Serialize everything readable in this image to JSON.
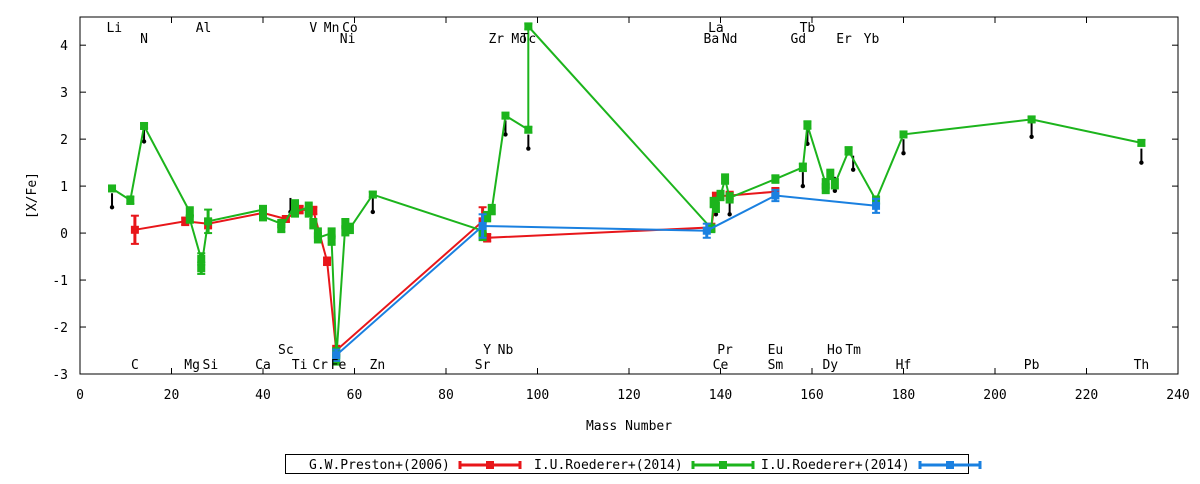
{
  "chart_data": {
    "type": "line",
    "xlabel": "Mass Number",
    "ylabel": "[X/Fe]",
    "xlim": [
      0,
      240
    ],
    "ylim": [
      -3,
      4.6
    ],
    "xticks": [
      0,
      20,
      40,
      60,
      80,
      100,
      120,
      140,
      160,
      180,
      200,
      220,
      240
    ],
    "yticks": [
      -3,
      -2,
      -1,
      0,
      1,
      2,
      3,
      4
    ],
    "grid": false,
    "legend_position": "bottom",
    "element_labels": [
      {
        "text": "Li",
        "x": 7.5,
        "row": "top1"
      },
      {
        "text": "Al",
        "x": 27,
        "row": "top1"
      },
      {
        "text": "V",
        "x": 51,
        "row": "top1"
      },
      {
        "text": "Mn",
        "x": 55,
        "row": "top1"
      },
      {
        "text": "Co",
        "x": 59,
        "row": "top1"
      },
      {
        "text": "La",
        "x": 139,
        "row": "top1"
      },
      {
        "text": "Tb",
        "x": 159,
        "row": "top1"
      },
      {
        "text": "N",
        "x": 14,
        "row": "top2"
      },
      {
        "text": "Ni",
        "x": 58.5,
        "row": "top2"
      },
      {
        "text": "Zr",
        "x": 91,
        "row": "top2"
      },
      {
        "text": "Mo",
        "x": 96,
        "row": "top2"
      },
      {
        "text": "Tc",
        "x": 98,
        "row": "top2"
      },
      {
        "text": "Ba",
        "x": 138,
        "row": "top2"
      },
      {
        "text": "Nd",
        "x": 142,
        "row": "top2"
      },
      {
        "text": "Gd",
        "x": 157,
        "row": "top2"
      },
      {
        "text": "Er",
        "x": 167,
        "row": "top2"
      },
      {
        "text": "Yb",
        "x": 173,
        "row": "top2"
      },
      {
        "text": "Sc",
        "x": 45,
        "row": "bottom1"
      },
      {
        "text": "Y",
        "x": 89,
        "row": "bottom1"
      },
      {
        "text": "Nb",
        "x": 93,
        "row": "bottom1"
      },
      {
        "text": "Pr",
        "x": 141,
        "row": "bottom1"
      },
      {
        "text": "Eu",
        "x": 152,
        "row": "bottom1"
      },
      {
        "text": "Ho",
        "x": 165,
        "row": "bottom1"
      },
      {
        "text": "Tm",
        "x": 169,
        "row": "bottom1"
      },
      {
        "text": "C",
        "x": 12,
        "row": "bottom2"
      },
      {
        "text": "Mg",
        "x": 24.5,
        "row": "bottom2"
      },
      {
        "text": "Si",
        "x": 28.5,
        "row": "bottom2"
      },
      {
        "text": "Ca",
        "x": 40,
        "row": "bottom2"
      },
      {
        "text": "Ti",
        "x": 48,
        "row": "bottom2"
      },
      {
        "text": "Cr",
        "x": 52.5,
        "row": "bottom2"
      },
      {
        "text": "Fe",
        "x": 56.5,
        "row": "bottom2"
      },
      {
        "text": "Zn",
        "x": 65,
        "row": "bottom2"
      },
      {
        "text": "Sr",
        "x": 88,
        "row": "bottom2"
      },
      {
        "text": "Ce",
        "x": 140,
        "row": "bottom2"
      },
      {
        "text": "Sm",
        "x": 152,
        "row": "bottom2"
      },
      {
        "text": "Dy",
        "x": 164,
        "row": "bottom2"
      },
      {
        "text": "Hf",
        "x": 180,
        "row": "bottom2"
      },
      {
        "text": "Pb",
        "x": 208,
        "row": "bottom2"
      },
      {
        "text": "Th",
        "x": 232,
        "row": "bottom2"
      }
    ],
    "upper_limits": [
      {
        "x": 7,
        "y": 0.55
      },
      {
        "x": 14,
        "y": 1.95
      },
      {
        "x": 46,
        "y": 0.45
      },
      {
        "x": 64,
        "y": 0.45
      },
      {
        "x": 93,
        "y": 2.1
      },
      {
        "x": 98,
        "y": 1.8
      },
      {
        "x": 139,
        "y": 0.4
      },
      {
        "x": 142,
        "y": 0.4
      },
      {
        "x": 158,
        "y": 1.0
      },
      {
        "x": 159,
        "y": 1.9
      },
      {
        "x": 165,
        "y": 0.9
      },
      {
        "x": 169,
        "y": 1.35
      },
      {
        "x": 180,
        "y": 1.7
      },
      {
        "x": 208,
        "y": 2.05
      },
      {
        "x": 232,
        "y": 1.5
      }
    ],
    "series": [
      {
        "name": "G.W.Preston+(2006)",
        "color": "#e8161a",
        "points": [
          {
            "x": 12,
            "y": 0.07,
            "err": 0.3
          },
          {
            "x": 23,
            "y": 0.25,
            "err": 0.08
          },
          {
            "x": 28,
            "y": 0.2,
            "err": 0.1
          },
          {
            "x": 40,
            "y": 0.43,
            "err": 0.08
          },
          {
            "x": 45,
            "y": 0.3,
            "err": 0.06
          },
          {
            "x": 48,
            "y": 0.5,
            "err": 0.08
          },
          {
            "x": 51,
            "y": 0.48,
            "err": 0.08
          },
          {
            "x": 54,
            "y": -0.6,
            "err": 0.08
          },
          {
            "x": 56,
            "y": -2.5,
            "err": 0.1
          },
          {
            "x": 88,
            "y": 0.25,
            "err": 0.3
          },
          {
            "x": 89,
            "y": -0.1,
            "err": 0.08
          },
          {
            "x": 138,
            "y": 0.12,
            "err": 0.08
          },
          {
            "x": 139,
            "y": 0.78,
            "err": 0.08
          },
          {
            "x": 142,
            "y": 0.8,
            "err": 0.08
          },
          {
            "x": 152,
            "y": 0.88,
            "err": 0.08
          }
        ]
      },
      {
        "name": "I.U.Roederer+(2014)",
        "color": "#1cb41c",
        "points": [
          {
            "x": 7,
            "y": 0.95,
            "err": 0.05
          },
          {
            "x": 11,
            "y": 0.7,
            "err": 0.08
          },
          {
            "x": 14,
            "y": 2.28,
            "err": 0.05
          },
          {
            "x": 24,
            "y": 0.45,
            "err": 0.1
          },
          {
            "x": 24,
            "y": 0.3,
            "err": 0.08
          },
          {
            "x": 26.5,
            "y": -0.55,
            "err": 0.12
          },
          {
            "x": 26.5,
            "y": -0.75,
            "err": 0.12
          },
          {
            "x": 28,
            "y": 0.25,
            "err": 0.25
          },
          {
            "x": 40,
            "y": 0.5,
            "err": 0.08
          },
          {
            "x": 40,
            "y": 0.35,
            "err": 0.08
          },
          {
            "x": 44,
            "y": 0.2,
            "err": 0.08
          },
          {
            "x": 44,
            "y": 0.1,
            "err": 0.08
          },
          {
            "x": 47,
            "y": 0.6,
            "err": 0.1
          },
          {
            "x": 47,
            "y": 0.45,
            "err": 0.1
          },
          {
            "x": 50,
            "y": 0.55,
            "err": 0.1
          },
          {
            "x": 50,
            "y": 0.45,
            "err": 0.1
          },
          {
            "x": 51,
            "y": 0.2,
            "err": 0.1
          },
          {
            "x": 52,
            "y": 0.0,
            "err": 0.1
          },
          {
            "x": 52,
            "y": -0.1,
            "err": 0.1
          },
          {
            "x": 55,
            "y": 0.0,
            "err": 0.1
          },
          {
            "x": 55,
            "y": -0.15,
            "err": 0.1
          },
          {
            "x": 56,
            "y": -2.55,
            "err": 0.1
          },
          {
            "x": 56,
            "y": -2.7,
            "err": 0.1
          },
          {
            "x": 58,
            "y": 0.2,
            "err": 0.1
          },
          {
            "x": 58,
            "y": 0.05,
            "err": 0.1
          },
          {
            "x": 59,
            "y": 0.1,
            "err": 0.1
          },
          {
            "x": 64,
            "y": 0.82,
            "err": 0.06
          },
          {
            "x": 88,
            "y": 0.05,
            "err": 0.1
          },
          {
            "x": 88,
            "y": -0.05,
            "err": 0.1
          },
          {
            "x": 89,
            "y": 0.35,
            "err": 0.1
          },
          {
            "x": 90,
            "y": 0.5,
            "err": 0.1
          },
          {
            "x": 93,
            "y": 2.5,
            "err": 0.06
          },
          {
            "x": 98,
            "y": 2.2,
            "err": 0.06
          },
          {
            "x": 98,
            "y": 4.4,
            "err": 0.06
          },
          {
            "x": 138,
            "y": 0.1,
            "err": 0.08
          },
          {
            "x": 138.5,
            "y": 0.65,
            "err": 0.1
          },
          {
            "x": 139,
            "y": 0.55,
            "err": 0.1
          },
          {
            "x": 140,
            "y": 0.8,
            "err": 0.1
          },
          {
            "x": 141,
            "y": 1.15,
            "err": 0.1
          },
          {
            "x": 142,
            "y": 0.75,
            "err": 0.1
          },
          {
            "x": 152,
            "y": 1.15,
            "err": 0.08
          },
          {
            "x": 158,
            "y": 1.4,
            "err": 0.08
          },
          {
            "x": 159,
            "y": 2.3,
            "err": 0.08
          },
          {
            "x": 163,
            "y": 1.05,
            "err": 0.1
          },
          {
            "x": 163,
            "y": 0.95,
            "err": 0.1
          },
          {
            "x": 164,
            "y": 1.25,
            "err": 0.1
          },
          {
            "x": 165,
            "y": 1.05,
            "err": 0.1
          },
          {
            "x": 168,
            "y": 1.75,
            "err": 0.08
          },
          {
            "x": 174,
            "y": 0.7,
            "err": 0.08
          },
          {
            "x": 180,
            "y": 2.1,
            "err": 0.06
          },
          {
            "x": 208,
            "y": 2.42,
            "err": 0.06
          },
          {
            "x": 232,
            "y": 1.92,
            "err": 0.06
          }
        ]
      },
      {
        "name": "I.U.Roederer+(2014)",
        "color": "#1a80e0",
        "points": [
          {
            "x": 56,
            "y": -2.6,
            "err": 0.12
          },
          {
            "x": 88,
            "y": 0.15,
            "err": 0.25
          },
          {
            "x": 137,
            "y": 0.05,
            "err": 0.15
          },
          {
            "x": 152,
            "y": 0.8,
            "err": 0.12
          },
          {
            "x": 174,
            "y": 0.58,
            "err": 0.15
          }
        ]
      }
    ]
  }
}
